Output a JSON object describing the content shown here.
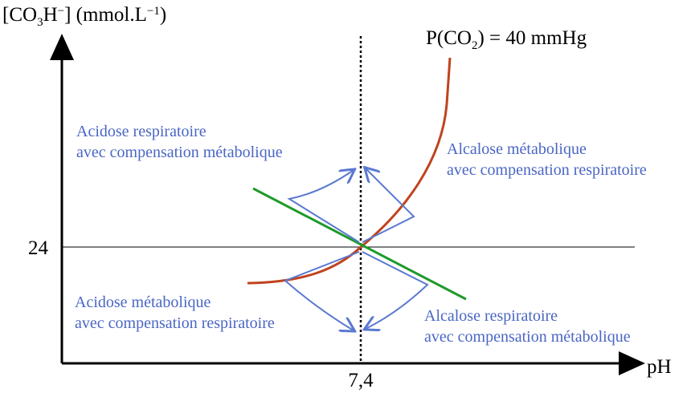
{
  "y_axis": {
    "label": [
      "[CO",
      "3",
      "H",
      "−",
      "] (mmol.L",
      "−1",
      ")"
    ],
    "tick": "24"
  },
  "x_axis": {
    "label": "pH",
    "tick": "7,4"
  },
  "isobar": [
    "P(CO",
    "2",
    ") = 40 mmHg"
  ],
  "regions": [
    {
      "lines": [
        "Acidose respiratoire",
        "avec compensation métabolique"
      ]
    },
    {
      "lines": [
        "Alcalose métabolique",
        "avec compensation respiratoire"
      ]
    },
    {
      "lines": [
        "Acidose métabolique",
        "avec compensation respiratoire"
      ]
    },
    {
      "lines": [
        "Alcalose respiratoire",
        "avec compensation métabolique"
      ]
    }
  ]
}
